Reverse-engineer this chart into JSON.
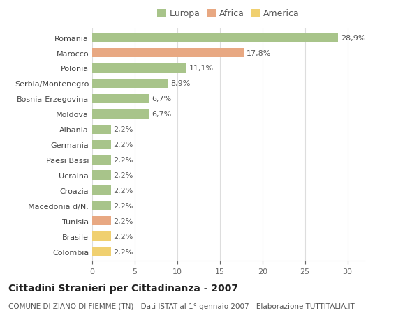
{
  "categories": [
    "Romania",
    "Marocco",
    "Polonia",
    "Serbia/Montenegro",
    "Bosnia-Erzegovina",
    "Moldova",
    "Albania",
    "Germania",
    "Paesi Bassi",
    "Ucraina",
    "Croazia",
    "Macedonia d/N.",
    "Tunisia",
    "Brasile",
    "Colombia"
  ],
  "values": [
    28.9,
    17.8,
    11.1,
    8.9,
    6.7,
    6.7,
    2.2,
    2.2,
    2.2,
    2.2,
    2.2,
    2.2,
    2.2,
    2.2,
    2.2
  ],
  "labels": [
    "28,9%",
    "17,8%",
    "11,1%",
    "8,9%",
    "6,7%",
    "6,7%",
    "2,2%",
    "2,2%",
    "2,2%",
    "2,2%",
    "2,2%",
    "2,2%",
    "2,2%",
    "2,2%",
    "2,2%"
  ],
  "colors": [
    "#a8c48a",
    "#e8a882",
    "#a8c48a",
    "#a8c48a",
    "#a8c48a",
    "#a8c48a",
    "#a8c48a",
    "#a8c48a",
    "#a8c48a",
    "#a8c48a",
    "#a8c48a",
    "#a8c48a",
    "#e8a882",
    "#f0d070",
    "#f0d070"
  ],
  "legend_labels": [
    "Europa",
    "Africa",
    "America"
  ],
  "legend_colors": [
    "#a8c48a",
    "#e8a882",
    "#f0d070"
  ],
  "title": "Cittadini Stranieri per Cittadinanza - 2007",
  "subtitle": "COMUNE DI ZIANO DI FIEMME (TN) - Dati ISTAT al 1° gennaio 2007 - Elaborazione TUTTITALIA.IT",
  "xlim": [
    0,
    32
  ],
  "xticks": [
    0,
    5,
    10,
    15,
    20,
    25,
    30
  ],
  "background_color": "#ffffff",
  "grid_color": "#dddddd",
  "bar_height": 0.6,
  "title_fontsize": 10,
  "subtitle_fontsize": 7.5,
  "label_fontsize": 8,
  "tick_fontsize": 8,
  "legend_fontsize": 9
}
